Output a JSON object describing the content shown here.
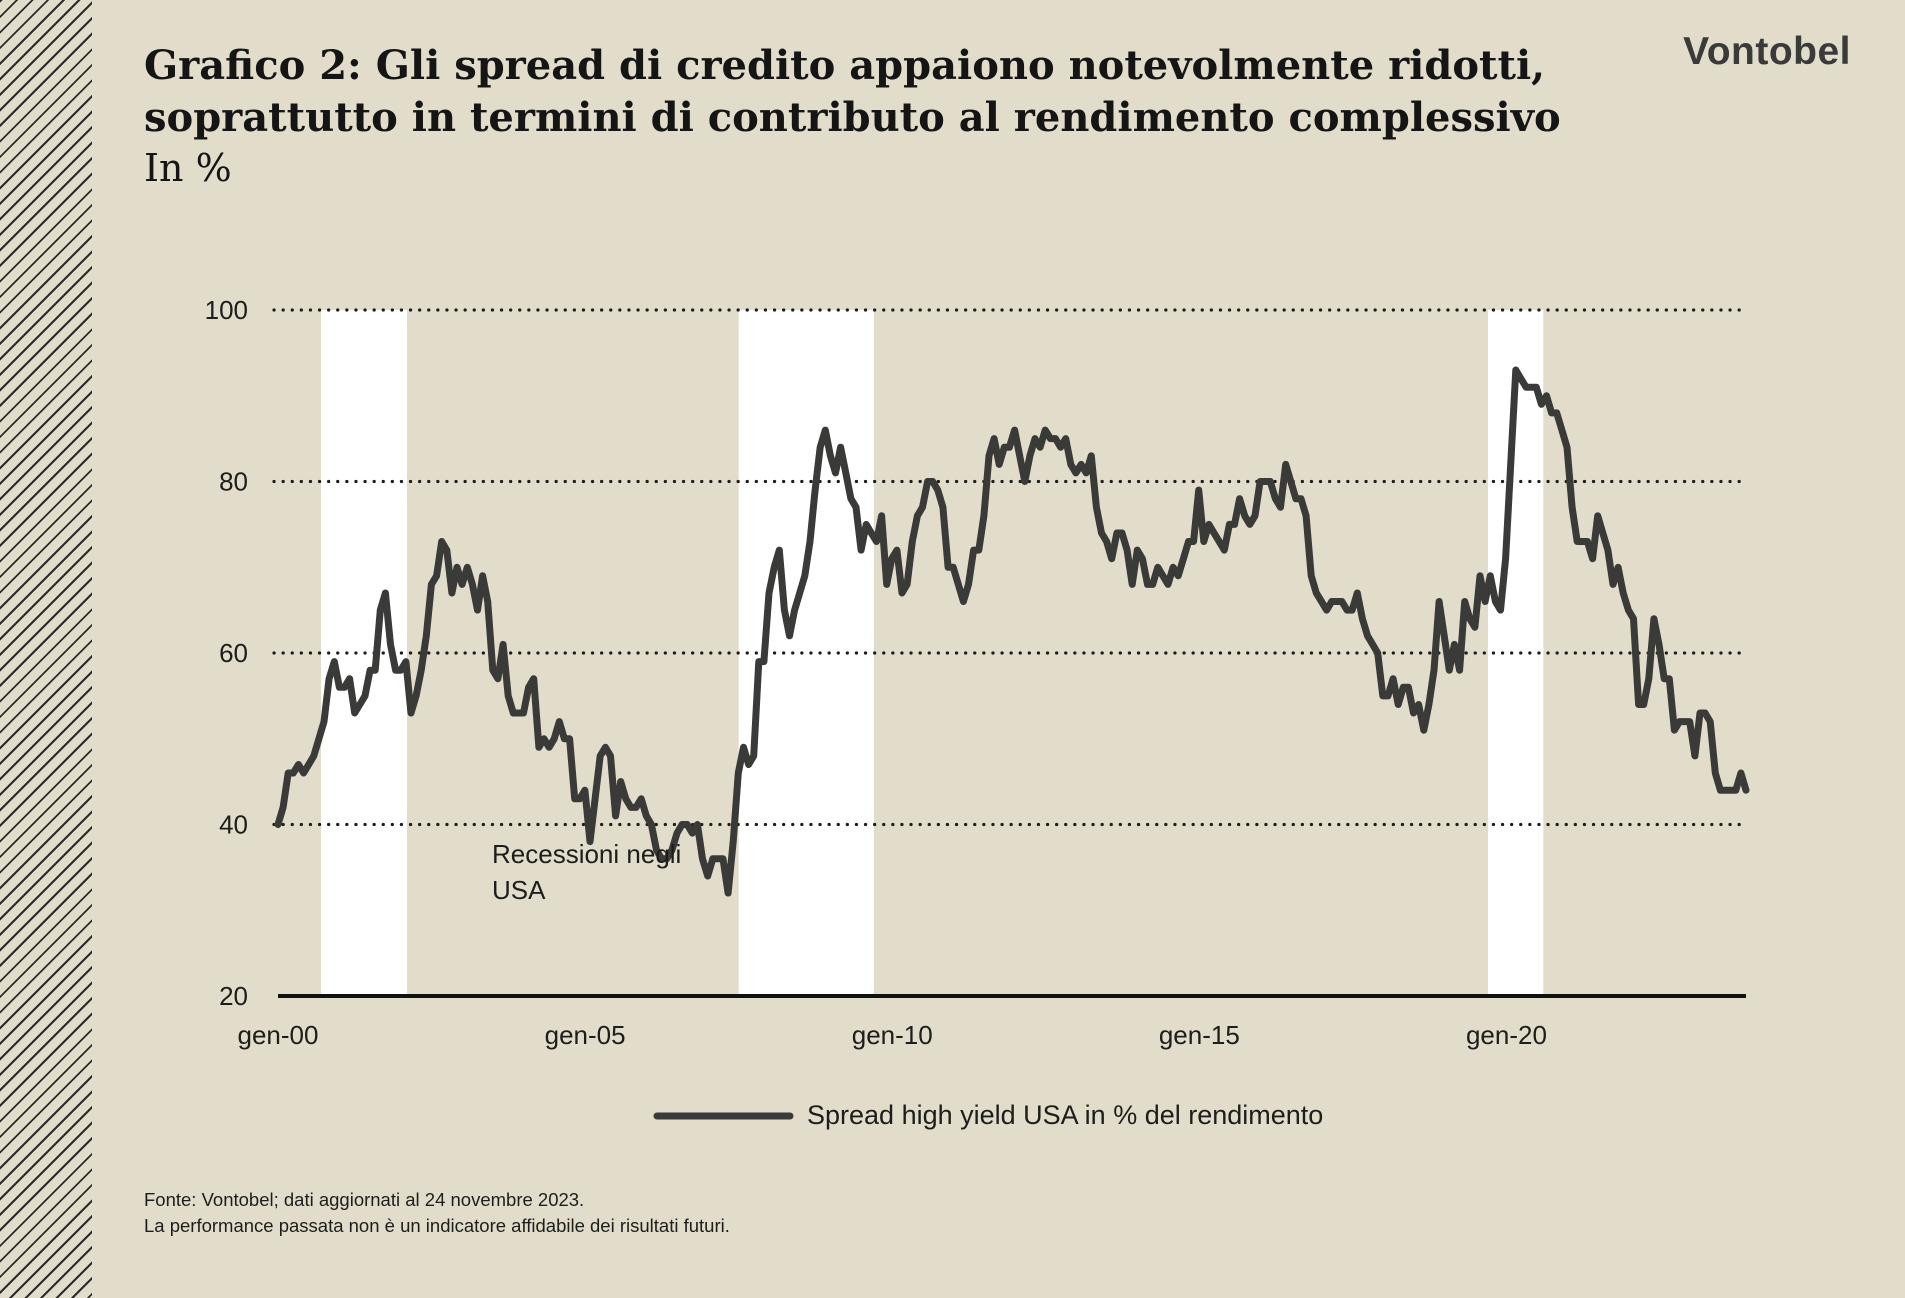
{
  "header": {
    "title_line1": "Grafico 2: Gli spread di credito appaiono notevolmente ridotti,",
    "title_line2": "soprattutto in termini di contributo al rendimento complessivo",
    "subtitle": "In %",
    "logo": "Vontobel"
  },
  "chart_data": {
    "type": "line",
    "title": "Grafico 2: Gli spread di credito appaiono notevolmente ridotti, soprattutto in termini di contributo al rendimento complessivo",
    "ylabel": "In %",
    "xlabel": "",
    "x_start": 2000.0,
    "x_end": 2023.9,
    "xlim": [
      2000.0,
      2023.9
    ],
    "ylim": [
      20,
      100
    ],
    "y_ticks": [
      20,
      40,
      60,
      80,
      100
    ],
    "y_tick_labels": [
      "20",
      "40",
      "60",
      "80",
      "100"
    ],
    "x_ticks": [
      2000,
      2005,
      2010,
      2015,
      2020
    ],
    "x_tick_labels": [
      "gen-00",
      "gen-05",
      "gen-10",
      "gen-15",
      "gen-20"
    ],
    "grid": "horizontal dotted",
    "legend_position": "bottom-center",
    "line_color": "#3a3b39",
    "recession_color": "#ffffff",
    "recessions": [
      {
        "start": 2000.7,
        "end": 2002.1
      },
      {
        "start": 2007.5,
        "end": 2009.7
      },
      {
        "start": 2019.7,
        "end": 2020.6
      }
    ],
    "recession_label": "Recessioni negli USA",
    "series": [
      {
        "name": "Spread high yield USA in % del rendimento",
        "values": [
          40,
          42,
          46,
          46,
          47,
          46,
          47,
          48,
          50,
          52,
          57,
          59,
          56,
          56,
          57,
          53,
          54,
          55,
          58,
          58,
          65,
          67,
          61,
          58,
          58,
          59,
          53,
          55,
          58,
          62,
          68,
          69,
          73,
          72,
          67,
          70,
          68,
          70,
          68,
          65,
          69,
          66,
          58,
          57,
          61,
          55,
          53,
          53,
          53,
          56,
          57,
          49,
          50,
          49,
          50,
          52,
          50,
          50,
          43,
          43,
          44,
          38,
          43,
          48,
          49,
          48,
          41,
          45,
          43,
          42,
          42,
          43,
          41,
          40,
          37,
          36,
          36,
          37,
          39,
          40,
          40,
          39,
          40,
          36,
          34,
          36,
          36,
          36,
          32,
          38,
          46,
          49,
          47,
          48,
          59,
          59,
          67,
          70,
          72,
          65,
          62,
          65,
          67,
          69,
          73,
          79,
          84,
          86,
          83,
          81,
          84,
          81,
          78,
          77,
          72,
          75,
          74,
          73,
          76,
          68,
          71,
          72,
          67,
          68,
          73,
          76,
          77,
          80,
          80,
          79,
          77,
          70,
          70,
          68,
          66,
          68,
          72,
          72,
          76,
          83,
          85,
          82,
          84,
          84,
          86,
          83,
          80,
          83,
          85,
          84,
          86,
          85,
          85,
          84,
          85,
          82,
          81,
          82,
          81,
          83,
          77,
          74,
          73,
          71,
          74,
          74,
          72,
          68,
          72,
          71,
          68,
          68,
          70,
          69,
          68,
          70,
          69,
          71,
          73,
          73,
          79,
          73,
          75,
          74,
          73,
          72,
          75,
          75,
          78,
          76,
          75,
          76,
          80,
          80,
          80,
          78,
          77,
          82,
          80,
          78,
          78,
          76,
          69,
          67,
          66,
          65,
          66,
          66,
          66,
          65,
          65,
          67,
          64,
          62,
          61,
          60,
          55,
          55,
          57,
          54,
          56,
          56,
          53,
          54,
          51,
          54,
          58,
          66,
          62,
          58,
          61,
          58,
          66,
          64,
          63,
          69,
          66,
          69,
          66,
          65,
          71,
          82,
          93,
          92,
          91,
          91,
          91,
          89,
          90,
          88,
          88,
          86,
          84,
          77,
          73,
          73,
          73,
          71,
          76,
          74,
          72,
          68,
          70,
          67,
          65,
          64,
          54,
          54,
          57,
          64,
          61,
          57,
          57,
          51,
          52,
          52,
          52,
          48,
          53,
          53,
          52,
          46,
          44,
          44,
          44,
          44,
          46,
          44
        ]
      }
    ]
  },
  "legend": {
    "label": "Spread high yield USA in % del rendimento"
  },
  "footnote": {
    "line1": "Fonte: Vontobel; dati aggiornati al 24 novembre 2023.",
    "line2": "La performance passata non è un indicatore affidabile dei risultati futuri."
  }
}
